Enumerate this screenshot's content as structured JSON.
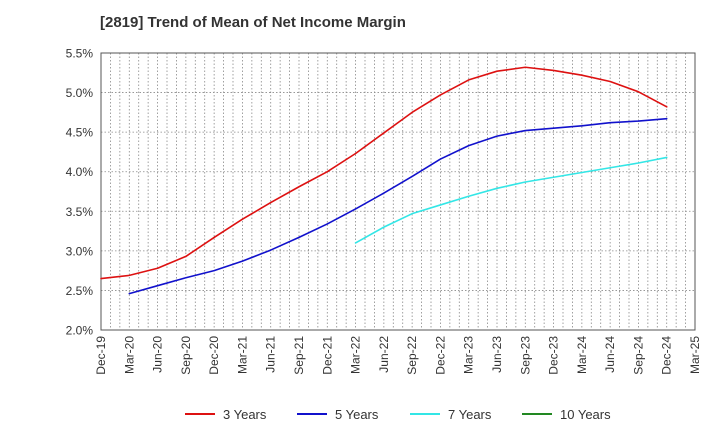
{
  "chart_data": {
    "type": "line",
    "title": "[2819]  Trend of Mean of Net Income Margin",
    "xlabel": "",
    "ylabel": "",
    "categories": [
      "Dec-19",
      "Mar-20",
      "Jun-20",
      "Sep-20",
      "Dec-20",
      "Mar-21",
      "Jun-21",
      "Sep-21",
      "Dec-21",
      "Mar-22",
      "Jun-22",
      "Sep-22",
      "Dec-22",
      "Mar-23",
      "Jun-23",
      "Sep-23",
      "Dec-23",
      "Mar-24",
      "Jun-24",
      "Sep-24",
      "Dec-24",
      "Mar-25"
    ],
    "y_ticks": [
      "5.5%",
      "5.0%",
      "4.5%",
      "4.0%",
      "3.5%",
      "3.0%",
      "2.5%",
      "2.0%"
    ],
    "ylim": [
      2.0,
      5.5
    ],
    "grid": true,
    "legend_position": "bottom",
    "series": [
      {
        "name": "3 Years",
        "color": "#dd1111",
        "values": [
          2.65,
          2.69,
          2.78,
          2.93,
          3.17,
          3.4,
          3.61,
          3.81,
          4.0,
          4.23,
          4.49,
          4.75,
          4.97,
          5.16,
          5.27,
          5.32,
          5.28,
          5.22,
          5.14,
          5.01,
          4.82,
          null
        ]
      },
      {
        "name": "5 Years",
        "color": "#1111cc",
        "values": [
          null,
          2.46,
          2.56,
          2.66,
          2.75,
          2.87,
          3.01,
          3.17,
          3.34,
          3.53,
          3.73,
          3.94,
          4.16,
          4.33,
          4.45,
          4.52,
          4.55,
          4.58,
          4.62,
          4.64,
          4.67,
          null
        ]
      },
      {
        "name": "7 Years",
        "color": "#33e6e6",
        "values": [
          null,
          null,
          null,
          null,
          null,
          null,
          null,
          null,
          null,
          3.1,
          3.3,
          3.47,
          3.58,
          3.69,
          3.79,
          3.87,
          3.93,
          3.99,
          4.05,
          4.11,
          4.18,
          null
        ]
      },
      {
        "name": "10 Years",
        "color": "#228822",
        "values": [
          null,
          null,
          null,
          null,
          null,
          null,
          null,
          null,
          null,
          null,
          null,
          null,
          null,
          null,
          null,
          null,
          null,
          null,
          null,
          null,
          null,
          null
        ]
      }
    ]
  }
}
